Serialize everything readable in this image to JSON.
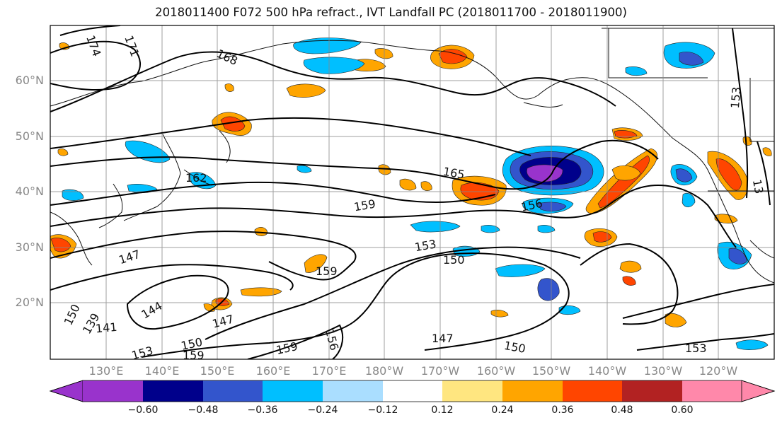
{
  "title": "2018011400 F072 500 hPa refract., IVT Landfall PC (2018011700 - 2018011900)",
  "lat_labels": [
    "60°N",
    "50°N",
    "40°N",
    "30°N",
    "20°N"
  ],
  "lon_labels": [
    "130°E",
    "140°E",
    "150°E",
    "160°E",
    "170°E",
    "180°W",
    "170°W",
    "160°W",
    "150°W",
    "140°W",
    "130°W",
    "120°W"
  ],
  "colorbar": {
    "colors": [
      "#9933cc",
      "#00008b",
      "#3355cc",
      "#00bfff",
      "#aadeff",
      "#ffffff",
      "#ffe680",
      "#ffa500",
      "#ff4500",
      "#b22222",
      "#ff88aa"
    ],
    "ticks": [
      "−0.60",
      "−0.48",
      "−0.36",
      "−0.24",
      "−0.12",
      "0.12",
      "0.24",
      "0.36",
      "0.48",
      "0.60"
    ]
  },
  "contour_labels": [
    "174",
    "171",
    "168",
    "153",
    "162",
    "165",
    "159",
    "156",
    "153",
    "150",
    "147",
    "159",
    "144",
    "147",
    "150",
    "159",
    "156",
    "147",
    "150",
    "153",
    "153",
    "159",
    "150",
    "139",
    "141",
    "13"
  ]
}
